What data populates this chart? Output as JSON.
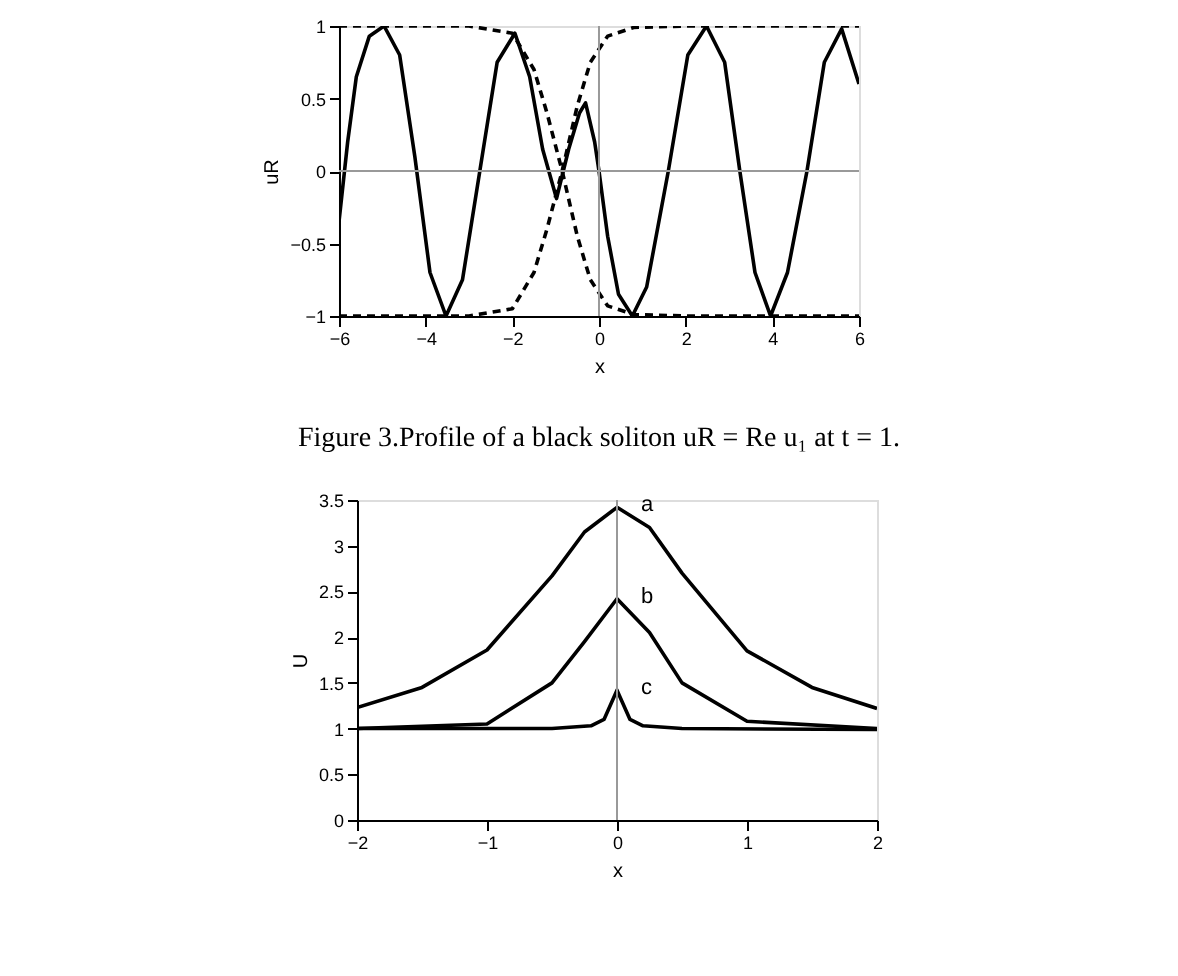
{
  "chart_data": [
    {
      "type": "line",
      "xlabel": "x",
      "ylabel": "uR",
      "xlim": [
        -6,
        6
      ],
      "ylim": [
        -1,
        1
      ],
      "xticks": [
        -6,
        -4,
        -2,
        0,
        2,
        4,
        6
      ],
      "yticks": [
        -1,
        -0.5,
        0,
        0.5,
        1
      ],
      "grid": false,
      "marker": "none",
      "ref_lines": [
        {
          "axis": "x",
          "value": 0,
          "color": "#999999"
        },
        {
          "axis": "y",
          "value": 0,
          "color": "#999999"
        }
      ],
      "annotations": [
        "Figure 3.Profile of a black soliton uR = Re u₁ at t = 1."
      ],
      "series": [
        {
          "color": "#000000",
          "line_style": "solid",
          "x": [
            -6,
            -5.8,
            -5.6,
            -5.3,
            -4.96,
            -4.6,
            -4.25,
            -3.9,
            -3.53,
            -3.15,
            -2.75,
            -2.35,
            -1.94,
            -1.6,
            -1.3,
            -0.98,
            -0.7,
            -0.45,
            -0.31,
            -0.1,
            0,
            0.2,
            0.45,
            0.77,
            1.1,
            1.6,
            2.05,
            2.48,
            2.9,
            3.25,
            3.6,
            3.96,
            4.35,
            4.8,
            5.2,
            5.6,
            6
          ],
          "values": [
            -0.35,
            0.2,
            0.65,
            0.93,
            1,
            0.8,
            0.1,
            -0.7,
            -1,
            -0.75,
            0,
            0.75,
            0.95,
            0.65,
            0.15,
            -0.19,
            0.15,
            0.4,
            0.47,
            0.2,
            0,
            -0.45,
            -0.85,
            -1,
            -0.8,
            0,
            0.8,
            1,
            0.75,
            0,
            -0.7,
            -1,
            -0.7,
            0,
            0.75,
            0.98,
            0.6
          ]
        },
        {
          "color": "#000000",
          "line_style": "dashed",
          "x": [
            -6,
            -3,
            -2,
            -1.5,
            -1.2,
            -0.85,
            -0.5,
            -0.2,
            0.2,
            0.8,
            2,
            6
          ],
          "values": [
            1,
            1,
            0.95,
            0.7,
            0.4,
            0,
            -0.45,
            -0.75,
            -0.93,
            -0.99,
            -1,
            -1
          ]
        },
        {
          "color": "#000000",
          "line_style": "dashed",
          "x": [
            -6,
            -3,
            -2,
            -1.5,
            -1.2,
            -0.85,
            -0.5,
            -0.2,
            0.2,
            0.8,
            2,
            6
          ],
          "values": [
            -1,
            -1,
            -0.95,
            -0.7,
            -0.4,
            0,
            0.45,
            0.75,
            0.93,
            0.99,
            1,
            1
          ]
        }
      ]
    },
    {
      "type": "line",
      "xlabel": "x",
      "ylabel": "U",
      "xlim": [
        -2,
        2
      ],
      "ylim": [
        0,
        3.5
      ],
      "xticks": [
        -2,
        -1,
        0,
        1,
        2
      ],
      "yticks": [
        0,
        0.5,
        1,
        1.5,
        2,
        2.5,
        3,
        3.5
      ],
      "grid": false,
      "marker": "none",
      "ref_lines": [
        {
          "axis": "x",
          "value": 0,
          "color": "#999999"
        }
      ],
      "series": [
        {
          "name": "a",
          "color": "#000000",
          "line_style": "solid",
          "x": [
            -2,
            -1.5,
            -1,
            -0.5,
            -0.25,
            0,
            0.25,
            0.5,
            1,
            1.5,
            2
          ],
          "values": [
            1.23,
            1.45,
            1.86,
            2.67,
            3.15,
            3.42,
            3.2,
            2.7,
            1.85,
            1.45,
            1.22
          ]
        },
        {
          "name": "b",
          "color": "#000000",
          "line_style": "solid",
          "x": [
            -2,
            -1,
            -0.5,
            -0.25,
            0,
            0.25,
            0.5,
            1,
            2
          ],
          "values": [
            1.0,
            1.05,
            1.5,
            1.95,
            2.42,
            2.05,
            1.5,
            1.08,
            1.0
          ]
        },
        {
          "name": "c",
          "color": "#000000",
          "line_style": "solid",
          "x": [
            -2,
            -0.5,
            -0.2,
            -0.1,
            0,
            0.1,
            0.2,
            0.5,
            2
          ],
          "values": [
            1.0,
            1.0,
            1.03,
            1.1,
            1.42,
            1.1,
            1.03,
            1.0,
            0.99
          ]
        }
      ]
    }
  ]
}
